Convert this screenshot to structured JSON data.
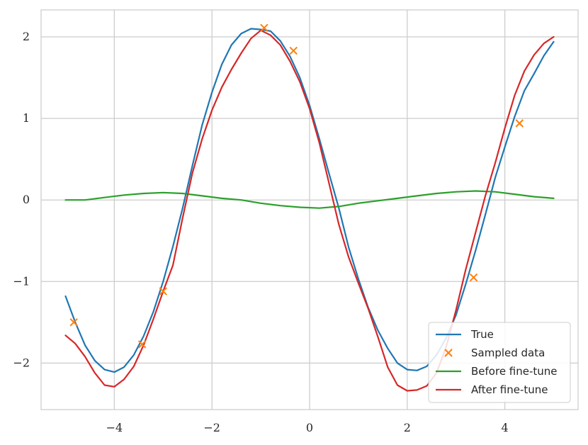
{
  "chart_data": {
    "type": "line",
    "title": "",
    "xlabel": "",
    "ylabel": "",
    "xlim": [
      -5.5,
      5.5
    ],
    "ylim": [
      -2.57,
      2.33
    ],
    "xticks": [
      -4,
      -2,
      0,
      2,
      4
    ],
    "xtick_labels": [
      "−4",
      "−2",
      "0",
      "2",
      "4"
    ],
    "yticks": [
      -2,
      -1,
      0,
      1,
      2
    ],
    "ytick_labels": [
      "−2",
      "−1",
      "0",
      "1",
      "2"
    ],
    "grid": true,
    "legend_position": "lower-right",
    "series": [
      {
        "name": "True",
        "kind": "line",
        "color": "#1f77b4",
        "x": [
          -5.0,
          -4.8,
          -4.6,
          -4.4,
          -4.2,
          -4.0,
          -3.8,
          -3.6,
          -3.4,
          -3.2,
          -3.0,
          -2.8,
          -2.6,
          -2.4,
          -2.2,
          -2.0,
          -1.8,
          -1.6,
          -1.4,
          -1.2,
          -1.0,
          -0.8,
          -0.6,
          -0.4,
          -0.2,
          0.0,
          0.2,
          0.4,
          0.6,
          0.8,
          1.0,
          1.2,
          1.4,
          1.6,
          1.8,
          2.0,
          2.2,
          2.4,
          2.6,
          2.8,
          3.0,
          3.2,
          3.4,
          3.6,
          3.8,
          4.0,
          4.2,
          4.4,
          4.6,
          4.8,
          5.0
        ],
        "y": [
          -1.18,
          -1.5,
          -1.78,
          -1.97,
          -2.08,
          -2.11,
          -2.05,
          -1.9,
          -1.67,
          -1.37,
          -1.0,
          -0.57,
          -0.1,
          0.42,
          0.92,
          1.32,
          1.66,
          1.9,
          2.04,
          2.1,
          2.09,
          2.07,
          1.95,
          1.76,
          1.5,
          1.16,
          0.75,
          0.32,
          -0.1,
          -0.58,
          -0.97,
          -1.32,
          -1.6,
          -1.82,
          -2.0,
          -2.08,
          -2.09,
          -2.04,
          -1.9,
          -1.69,
          -1.41,
          -1.03,
          -0.62,
          -0.18,
          0.27,
          0.65,
          1.02,
          1.34,
          1.55,
          1.77,
          1.94
        ]
      },
      {
        "name": "Sampled data",
        "kind": "scatter",
        "color": "#ff7f0e",
        "x": [
          -4.83,
          -3.43,
          -3.0,
          -0.93,
          -0.33,
          2.85,
          3.36,
          4.3
        ],
        "y": [
          -1.5,
          -1.77,
          -1.12,
          2.11,
          1.83,
          -1.86,
          -0.95,
          0.94
        ]
      },
      {
        "name": "Before fine-tune",
        "kind": "line",
        "color": "#2ca02c",
        "x": [
          -5.0,
          -4.6,
          -4.2,
          -3.8,
          -3.4,
          -3.0,
          -2.6,
          -2.2,
          -1.8,
          -1.4,
          -1.0,
          -0.6,
          -0.2,
          0.2,
          0.6,
          1.0,
          1.4,
          1.8,
          2.2,
          2.6,
          3.0,
          3.4,
          3.8,
          4.2,
          4.6,
          5.0
        ],
        "y": [
          0.0,
          0.0,
          0.03,
          0.06,
          0.08,
          0.09,
          0.08,
          0.05,
          0.02,
          0.0,
          -0.04,
          -0.07,
          -0.09,
          -0.1,
          -0.08,
          -0.04,
          -0.01,
          0.02,
          0.05,
          0.08,
          0.1,
          0.11,
          0.1,
          0.07,
          0.04,
          0.02
        ]
      },
      {
        "name": "After fine-tune",
        "kind": "line",
        "color": "#d62728",
        "x": [
          -5.0,
          -4.8,
          -4.6,
          -4.4,
          -4.2,
          -4.0,
          -3.8,
          -3.6,
          -3.4,
          -3.2,
          -3.0,
          -2.8,
          -2.6,
          -2.4,
          -2.2,
          -2.0,
          -1.8,
          -1.6,
          -1.4,
          -1.2,
          -1.0,
          -0.8,
          -0.6,
          -0.4,
          -0.2,
          0.0,
          0.2,
          0.4,
          0.6,
          0.8,
          1.0,
          1.2,
          1.4,
          1.6,
          1.8,
          2.0,
          2.2,
          2.4,
          2.6,
          2.8,
          3.0,
          3.2,
          3.4,
          3.6,
          3.8,
          4.0,
          4.2,
          4.4,
          4.6,
          4.8,
          5.0
        ],
        "y": [
          -1.66,
          -1.76,
          -1.92,
          -2.12,
          -2.27,
          -2.29,
          -2.2,
          -2.04,
          -1.78,
          -1.46,
          -1.12,
          -0.8,
          -0.22,
          0.33,
          0.75,
          1.1,
          1.38,
          1.6,
          1.8,
          1.98,
          2.08,
          2.02,
          1.9,
          1.7,
          1.45,
          1.12,
          0.7,
          0.2,
          -0.3,
          -0.7,
          -1.02,
          -1.33,
          -1.68,
          -2.05,
          -2.27,
          -2.34,
          -2.33,
          -2.28,
          -2.12,
          -1.8,
          -1.35,
          -0.85,
          -0.4,
          0.05,
          0.45,
          0.88,
          1.28,
          1.58,
          1.78,
          1.92,
          2.0
        ]
      }
    ]
  }
}
